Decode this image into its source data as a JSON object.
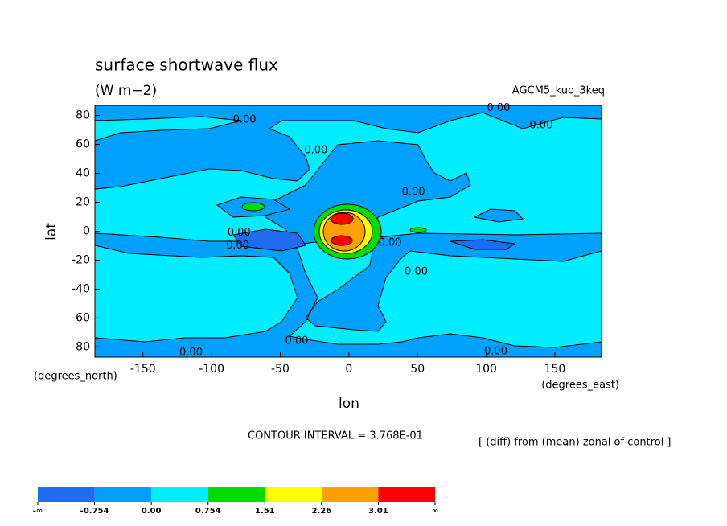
{
  "chart_data": {
    "type": "contour",
    "title": "surface shortwave flux",
    "subtitle": "(W m−2)",
    "annotation": "AGCM5_kuo_3keq",
    "x_label": "lon",
    "y_label": "lat",
    "x_units": "(degrees_east)",
    "y_units": "(degrees_north)",
    "contour_interval": "CONTOUR INTERVAL = 3.768E-01",
    "description": "[ (diff) from (mean) zonal of control ]",
    "xlim": [
      -185,
      184
    ],
    "xticks": [
      -150,
      -100,
      -50,
      0,
      50,
      100,
      150
    ],
    "ylim": [
      -87,
      87
    ],
    "yticks": [
      -80,
      -60,
      -40,
      -20,
      0,
      20,
      40,
      60,
      80
    ],
    "contour_labels": [
      {
        "x": -76,
        "y": 77,
        "label": "0.00"
      },
      {
        "x": -24,
        "y": 56,
        "label": "0.00"
      },
      {
        "x": 109,
        "y": 85,
        "label": "0.00"
      },
      {
        "x": 140,
        "y": 73,
        "label": "0.00"
      },
      {
        "x": 47,
        "y": 27,
        "label": "0.00"
      },
      {
        "x": -80,
        "y": -1,
        "label": "0.00"
      },
      {
        "x": -81,
        "y": -10,
        "label": "0.00"
      },
      {
        "x": 30,
        "y": -8,
        "label": "0.00"
      },
      {
        "x": 49,
        "y": -28,
        "label": "0.00"
      },
      {
        "x": -38,
        "y": -76,
        "label": "0.00"
      },
      {
        "x": -115,
        "y": -84,
        "label": "0.00"
      },
      {
        "x": 107,
        "y": -83,
        "label": "0.00"
      }
    ],
    "colorbar": {
      "colors": [
        "#1e6cf0",
        "#00a0ff",
        "#00ecff",
        "#00dc00",
        "#ffff00",
        "#ffa000",
        "#ff0000"
      ],
      "labels": [
        "-∞",
        "-0.754",
        "0.00",
        "0.754",
        "1.51",
        "2.26",
        "3.01",
        "∞"
      ]
    }
  }
}
